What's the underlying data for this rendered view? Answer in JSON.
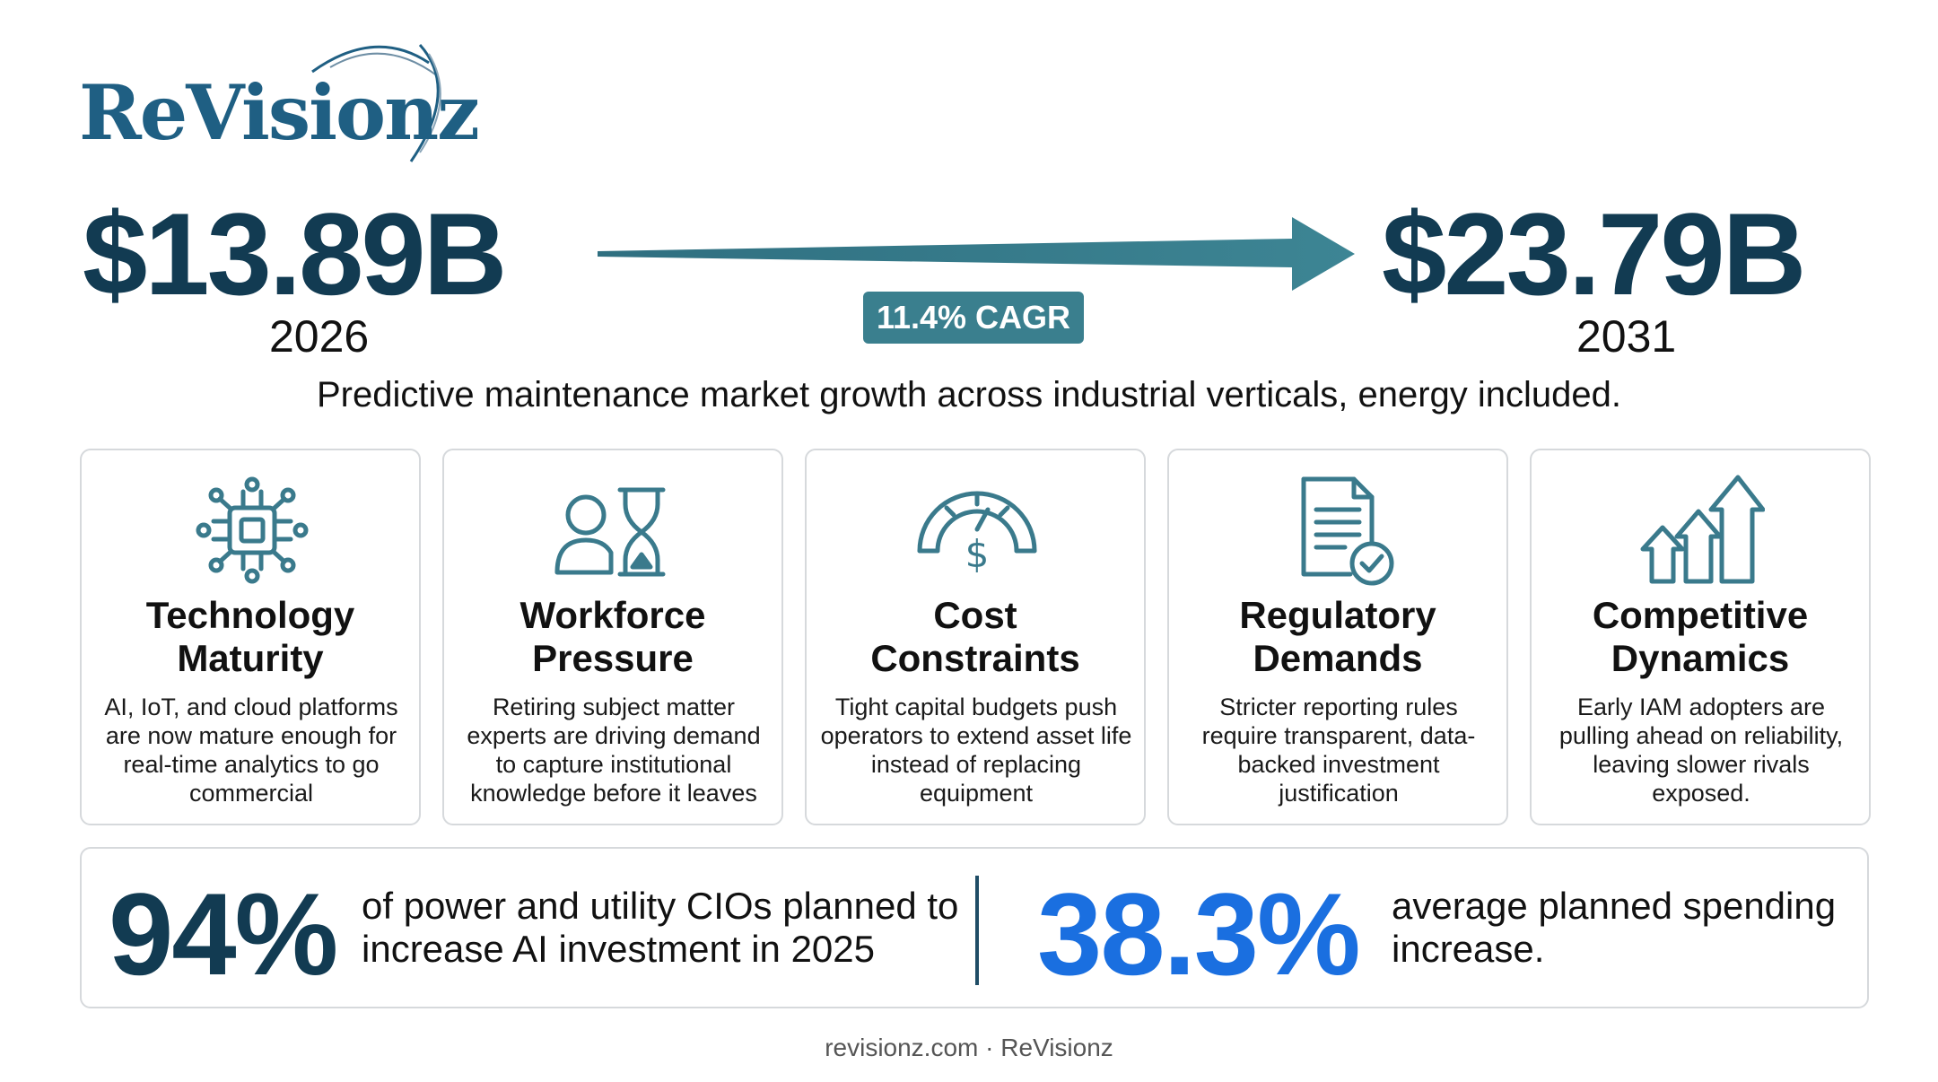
{
  "brand": {
    "logo_text": "ReVisionz"
  },
  "growth": {
    "start_value": "$13.89B",
    "start_year": "2026",
    "end_value": "$23.79B",
    "end_year": "2031",
    "cagr_label": "11.4% CAGR",
    "subtitle": "Predictive maintenance market growth across industrial verticals, energy included."
  },
  "cards": [
    {
      "icon": "chip-icon",
      "title_line1": "Technology",
      "title_line2": "Maturity",
      "desc": "AI, IoT, and cloud platforms are now mature enough for real-time analytics to go commercial"
    },
    {
      "icon": "person-hourglass-icon",
      "title_line1": "Workforce",
      "title_line2": "Pressure",
      "desc": "Retiring subject matter experts are driving demand to capture institutional knowledge before it leaves"
    },
    {
      "icon": "gauge-dollar-icon",
      "title_line1": "Cost",
      "title_line2": "Constraints",
      "desc": "Tight capital budgets push operators to extend asset life instead of replacing equipment"
    },
    {
      "icon": "document-check-icon",
      "title_line1": "Regulatory",
      "title_line2": "Demands",
      "desc": "Stricter reporting rules require transparent, data-backed investment justification"
    },
    {
      "icon": "growth-arrows-icon",
      "title_line1": "Competitive",
      "title_line2": "Dynamics",
      "desc": "Early IAM adopters are pulling ahead on reliability, leaving slower rivals exposed."
    }
  ],
  "stats": {
    "stat1_value": "94%",
    "stat1_text": "of power and utility CIOs planned to increase AI investment in 2025",
    "stat2_value": "38.3%",
    "stat2_text": "average planned spending increase."
  },
  "footer": "revisionz.com · ReVisionz",
  "colors": {
    "navy": "#123b52",
    "teal": "#3a7f8e",
    "icon": "#3a7a8c",
    "blue": "#1a6fe0"
  }
}
